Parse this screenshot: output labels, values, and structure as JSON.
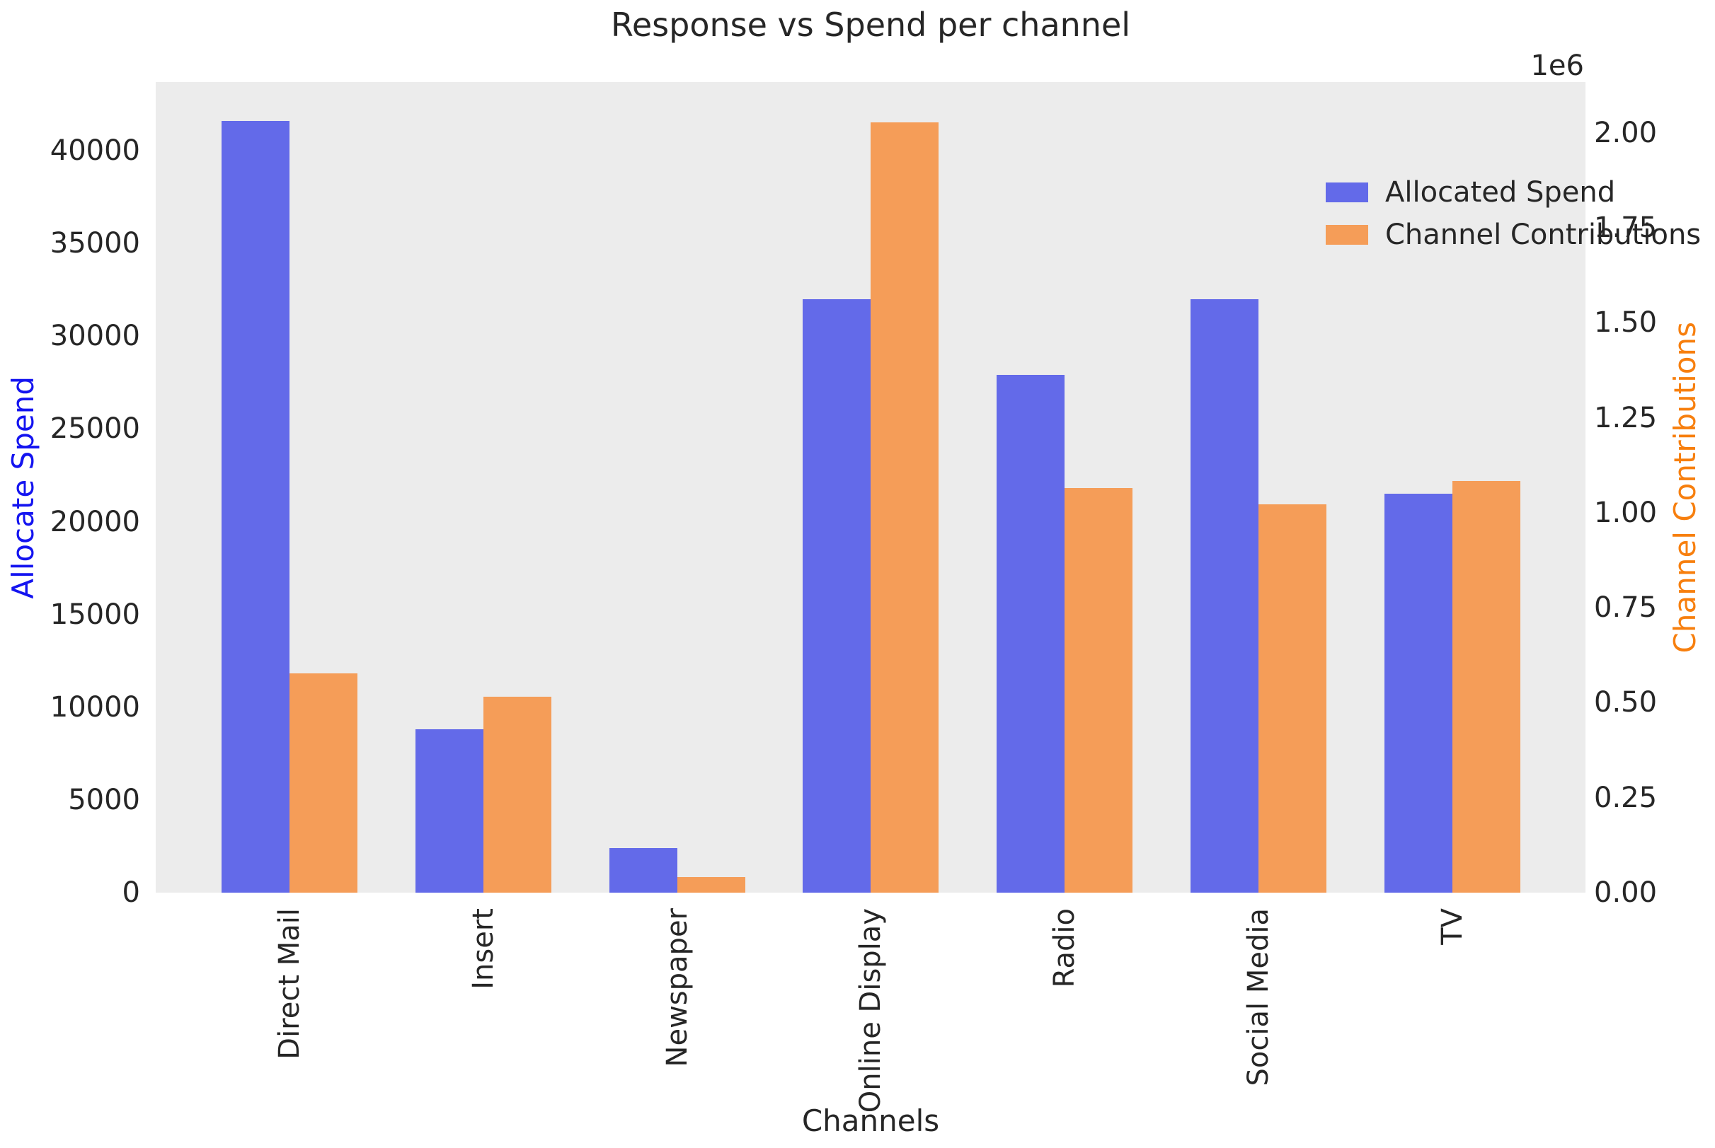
{
  "title": "Response vs Spend per channel",
  "axes": {
    "x_label": "Channels",
    "left_label": "Allocate Spend",
    "right_label": "Channel Contributions",
    "right_offset": "1e6",
    "left_tick_labels": [
      "0",
      "5000",
      "10000",
      "15000",
      "20000",
      "25000",
      "30000",
      "35000",
      "40000"
    ],
    "left_tick_values": [
      0,
      5000,
      10000,
      15000,
      20000,
      25000,
      30000,
      35000,
      40000
    ],
    "right_tick_labels": [
      "0.00",
      "0.25",
      "0.50",
      "0.75",
      "1.00",
      "1.25",
      "1.50",
      "1.75",
      "2.00"
    ],
    "right_tick_values": [
      0,
      250000,
      500000,
      750000,
      1000000,
      1250000,
      1500000,
      1750000,
      2000000
    ]
  },
  "legend": {
    "position": "upper right",
    "items": [
      {
        "label": "Allocated Spend",
        "color": "#636ae9"
      },
      {
        "label": "Channel Contributions",
        "color": "#f59d58"
      }
    ]
  },
  "colors": {
    "spend_bar": "#636ae9",
    "contribution_bar": "#f59d58",
    "left_axis_label": "#1414f0",
    "right_axis_label": "#f77f0e",
    "plot_background": "#ececec",
    "text": "#262626"
  },
  "chart_data": {
    "type": "bar",
    "title": "Response vs Spend per channel",
    "xlabel": "Channels",
    "ylabel_left": "Allocate Spend",
    "ylabel_right": "Channel Contributions",
    "categories": [
      "Direct Mail",
      "Insert",
      "Newspaper",
      "Online Display",
      "Radio",
      "Social Media",
      "TV"
    ],
    "series": [
      {
        "name": "Allocated Spend",
        "axis": "left",
        "color": "#636ae9",
        "values": [
          41600,
          8800,
          2400,
          32000,
          27900,
          32000,
          21500
        ]
      },
      {
        "name": "Channel Contributions",
        "axis": "right",
        "color": "#f59d58",
        "values": [
          578000,
          516000,
          41000,
          2028000,
          1065000,
          1022000,
          1084000
        ]
      }
    ],
    "left_ylim": [
      0,
      43700
    ],
    "right_ylim": [
      0,
      2134000
    ],
    "right_axis_multiplier": "1e6",
    "grid": false,
    "legend_position": "upper right"
  }
}
